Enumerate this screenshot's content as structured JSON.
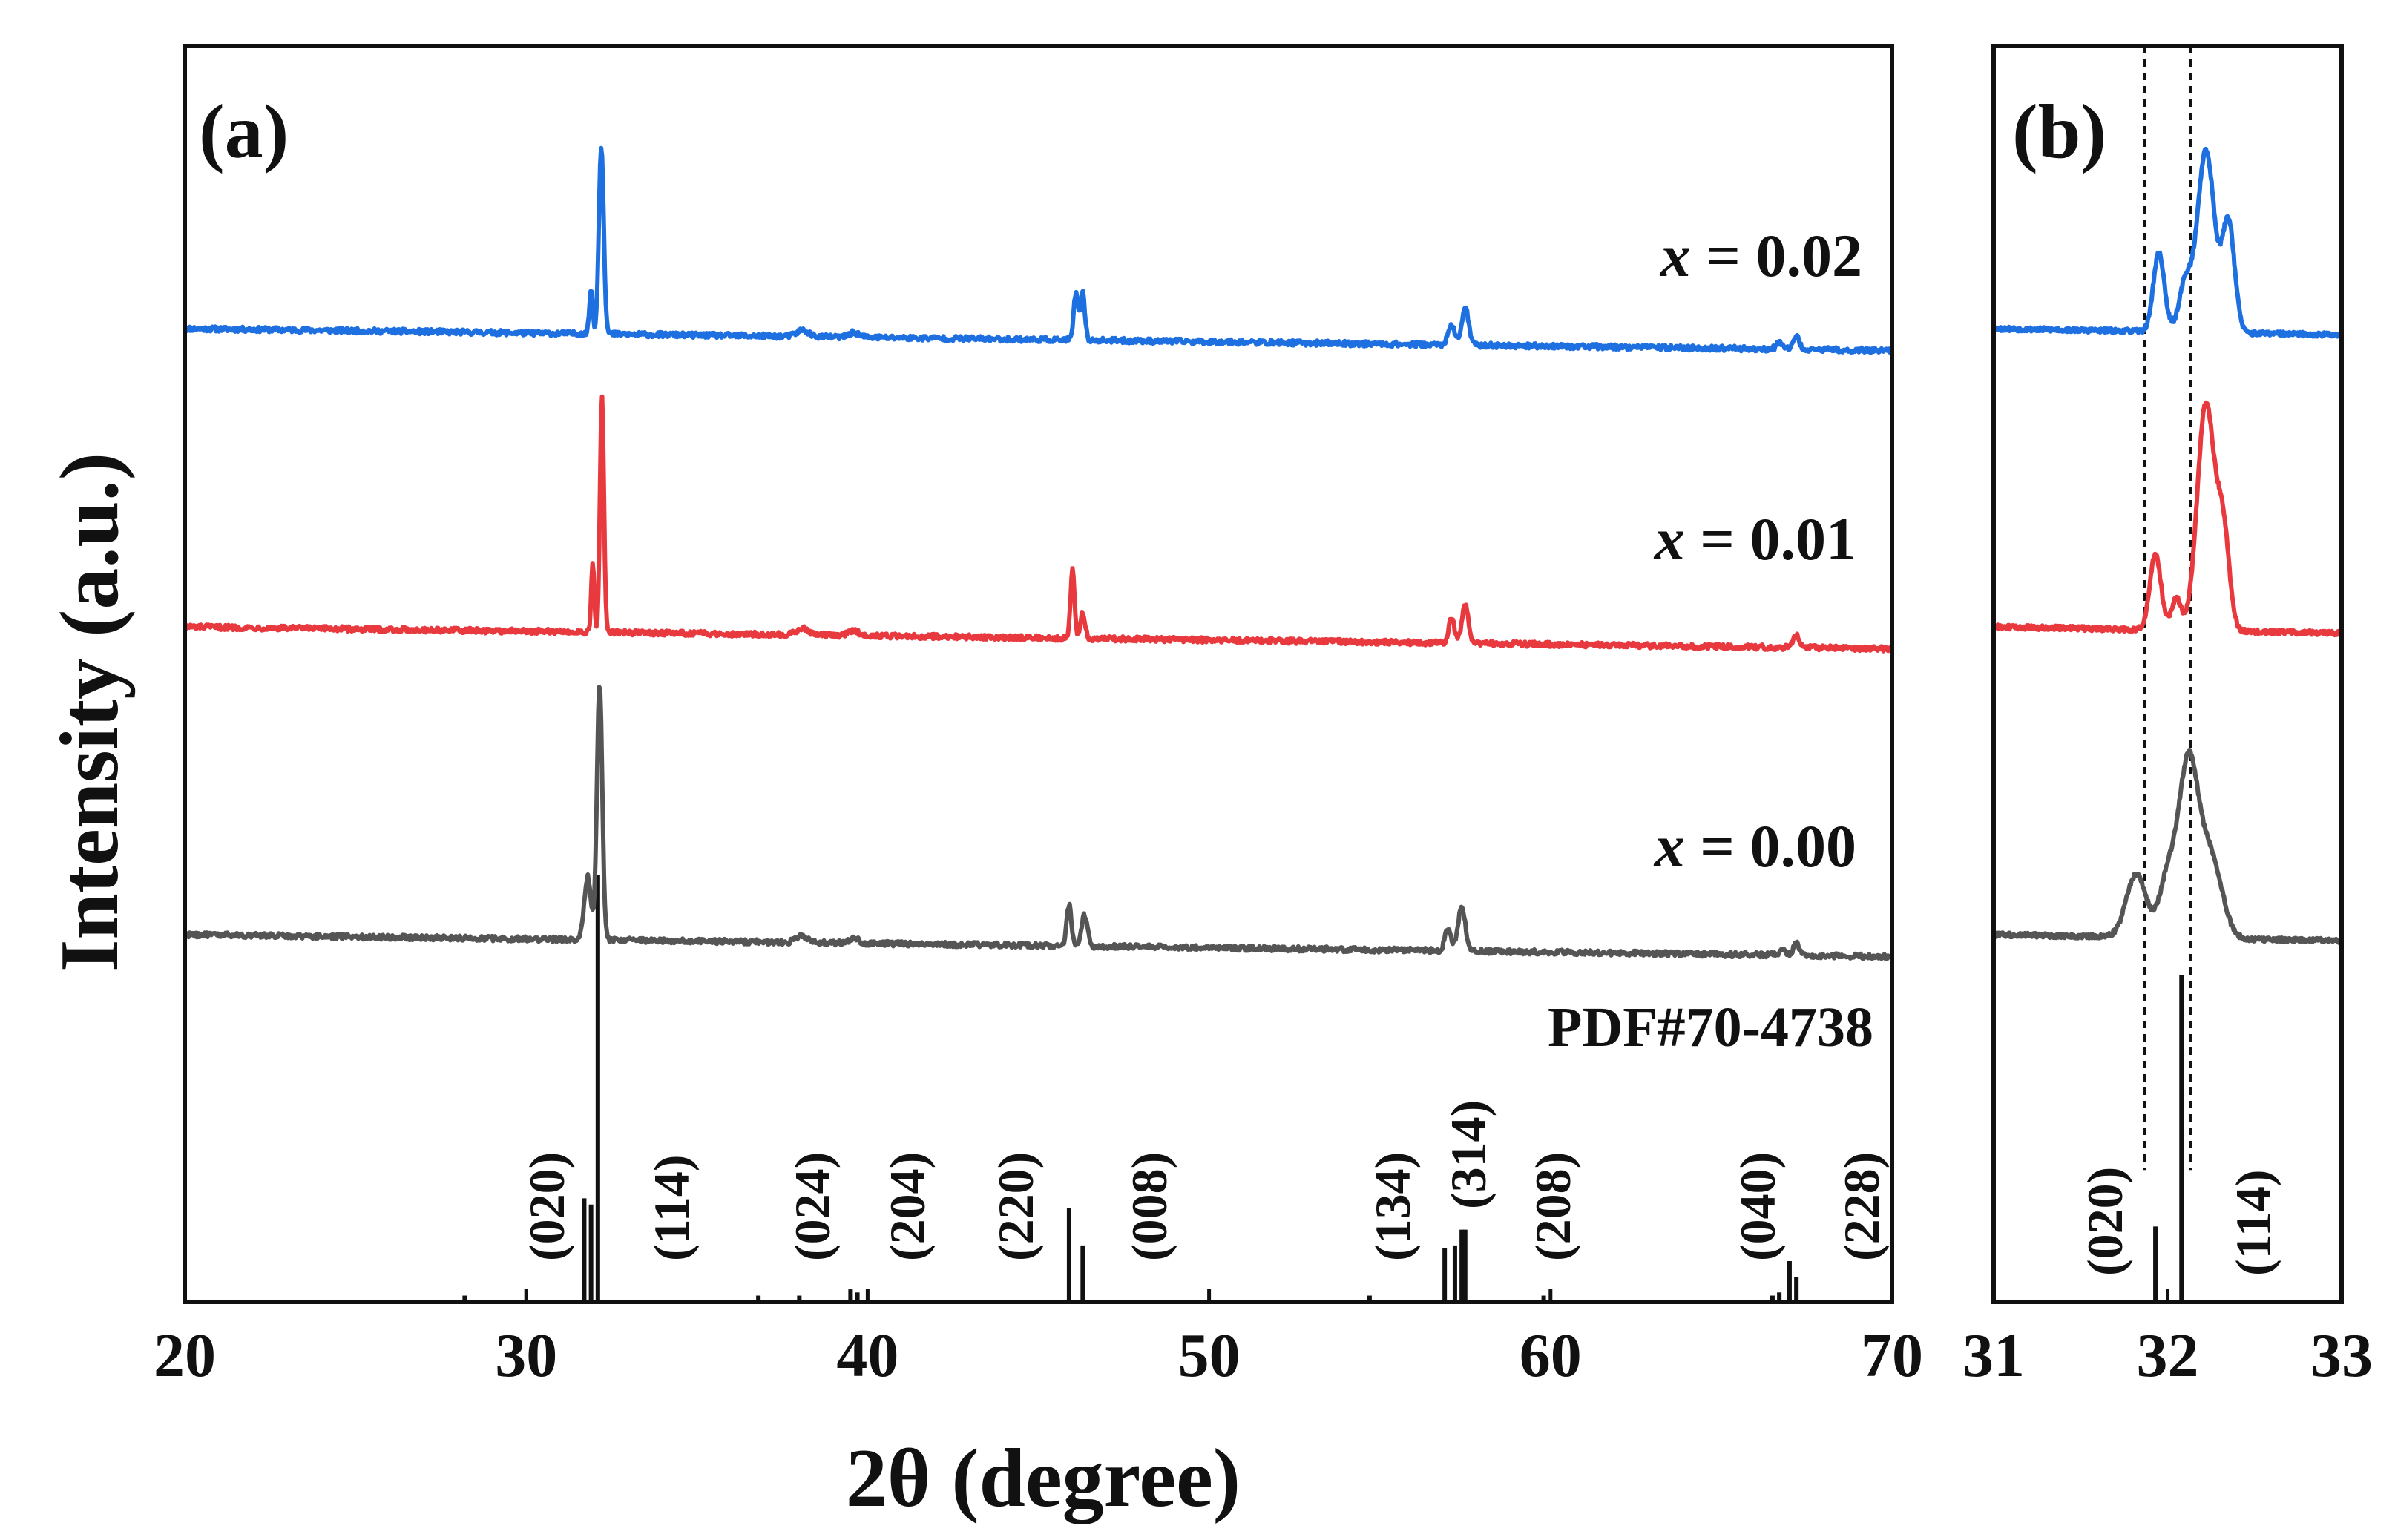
{
  "chart_data": [
    {
      "type": "line",
      "panel": "(a)",
      "xlabel": "2θ (degree)",
      "ylabel": "Intensity (a.u.)",
      "xlim": [
        20,
        70
      ],
      "ylim": [
        0,
        4
      ],
      "xticks": [
        20,
        30,
        40,
        50,
        60,
        70
      ],
      "series": [
        {
          "name": "x = 0.02",
          "label_prefix": "x",
          "label_suffix": " = 0.02",
          "color": "#1e6fe0",
          "baseline": 3.1,
          "noise": 0.008,
          "peaks": [
            [
              31.9,
              0.14,
              0.07
            ],
            [
              32.2,
              0.6,
              0.1
            ],
            [
              38.1,
              0.02,
              0.25
            ],
            [
              39.6,
              0.015,
              0.2
            ],
            [
              46.1,
              0.15,
              0.09
            ],
            [
              46.3,
              0.15,
              0.09
            ],
            [
              57.1,
              0.06,
              0.14
            ],
            [
              57.5,
              0.12,
              0.14
            ],
            [
              66.7,
              0.02,
              0.12
            ],
            [
              67.2,
              0.04,
              0.12
            ]
          ]
        },
        {
          "name": "x = 0.01",
          "label_prefix": "x",
          "label_suffix": " = 0.01",
          "color": "#e8393e",
          "baseline": 2.15,
          "noise": 0.008,
          "peaks": [
            [
              31.95,
              0.22,
              0.06
            ],
            [
              32.22,
              0.75,
              0.08
            ],
            [
              38.1,
              0.02,
              0.25
            ],
            [
              39.6,
              0.015,
              0.2
            ],
            [
              46.0,
              0.22,
              0.08
            ],
            [
              46.3,
              0.08,
              0.1
            ],
            [
              57.1,
              0.08,
              0.12
            ],
            [
              57.5,
              0.12,
              0.14
            ],
            [
              67.2,
              0.04,
              0.12
            ]
          ]
        },
        {
          "name": "x = 0.00",
          "label_prefix": "x",
          "label_suffix": " = 0.00",
          "color": "#555555",
          "baseline": 1.17,
          "noise": 0.008,
          "peaks": [
            [
              31.8,
              0.2,
              0.14
            ],
            [
              32.15,
              0.82,
              0.11
            ],
            [
              38.1,
              0.02,
              0.25
            ],
            [
              39.6,
              0.015,
              0.2
            ],
            [
              45.9,
              0.13,
              0.1
            ],
            [
              46.35,
              0.1,
              0.12
            ],
            [
              57.0,
              0.07,
              0.13
            ],
            [
              57.4,
              0.14,
              0.15
            ],
            [
              66.8,
              0.02,
              0.12
            ],
            [
              67.2,
              0.04,
              0.12
            ]
          ]
        }
      ],
      "reference": {
        "name": "PDF#70-4738",
        "sticks": [
          [
            28.2,
            0.02
          ],
          [
            31.7,
            0.33
          ],
          [
            31.9,
            0.31
          ],
          [
            32.1,
            1.36
          ],
          [
            36.8,
            0.02
          ],
          [
            38.0,
            0.02
          ],
          [
            39.5,
            0.04
          ],
          [
            39.7,
            0.03
          ],
          [
            45.9,
            0.3
          ],
          [
            46.3,
            0.18
          ],
          [
            54.7,
            0.02
          ],
          [
            56.9,
            0.17
          ],
          [
            57.2,
            0.18
          ],
          [
            57.4,
            0.23
          ],
          [
            57.5,
            0.23
          ],
          [
            59.8,
            0.02
          ],
          [
            66.5,
            0.02
          ],
          [
            66.7,
            0.03
          ],
          [
            67.0,
            0.13
          ],
          [
            67.2,
            0.08
          ]
        ],
        "hkl_labels": [
          "(020)",
          "(114)",
          "(024)",
          "(204)",
          "(220)",
          "(008)",
          "(134)",
          "(314)",
          "(208)",
          "(040)",
          "(228)"
        ]
      }
    },
    {
      "type": "line",
      "panel": "(b)",
      "xlim": [
        31,
        33
      ],
      "ylim": [
        0,
        4
      ],
      "xticks": [
        31,
        32,
        33
      ],
      "guide_lines": [
        31.87,
        32.13
      ],
      "series": [
        {
          "name": "x = 0.02",
          "color": "#1e6fe0",
          "baseline": 3.1,
          "noise": 0.007,
          "peaks": [
            [
              31.95,
              0.25,
              0.045
            ],
            [
              32.1,
              0.15,
              0.05
            ],
            [
              32.22,
              0.58,
              0.07
            ],
            [
              32.35,
              0.35,
              0.05
            ]
          ]
        },
        {
          "name": "x = 0.01",
          "color": "#e8393e",
          "baseline": 2.15,
          "noise": 0.007,
          "peaks": [
            [
              31.93,
              0.24,
              0.045
            ],
            [
              32.05,
              0.1,
              0.04
            ],
            [
              32.22,
              0.72,
              0.07
            ],
            [
              32.32,
              0.3,
              0.05
            ]
          ]
        },
        {
          "name": "x = 0.00",
          "color": "#555555",
          "baseline": 1.17,
          "noise": 0.007,
          "peaks": [
            [
              31.82,
              0.2,
              0.08
            ],
            [
              32.0,
              0.18,
              0.07
            ],
            [
              32.12,
              0.55,
              0.08
            ],
            [
              32.25,
              0.25,
              0.09
            ]
          ]
        }
      ],
      "reference": {
        "sticks": [
          [
            31.93,
            0.24
          ],
          [
            32.08,
            1.04
          ]
        ],
        "hkl_labels": [
          "(020)",
          "(114)"
        ]
      }
    }
  ]
}
